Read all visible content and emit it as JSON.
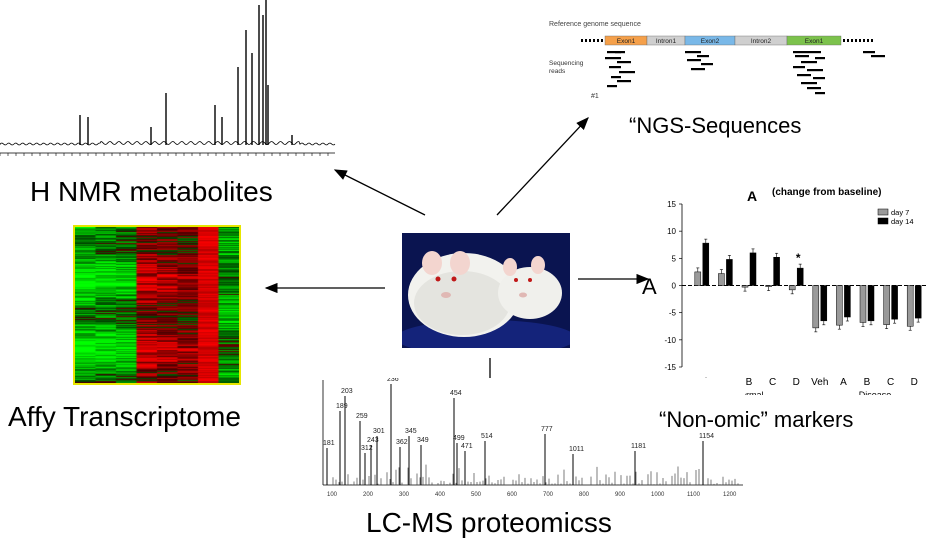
{
  "labels": {
    "nmr": "H NMR metabolites",
    "ngs": "“NGS-Sequences",
    "affy": "Affy Transcriptome",
    "lcms": "LC-MS proteomicss",
    "nonomic": "“Non-omic” markers"
  },
  "ngs_panel": {
    "ref_label": "Reference genome sequence",
    "reads_label_1": "Sequencing",
    "reads_label_2": "reads",
    "small_mark": "#1",
    "segments": [
      "Exon1",
      "Intron1",
      "Exon2",
      "Intron2",
      "Exon1"
    ]
  },
  "ms_peaks": [
    "203",
    "189",
    "236",
    "259",
    "181",
    "301",
    "243",
    "345",
    "312",
    "349",
    "362",
    "454",
    "499",
    "471",
    "514",
    "777",
    "1011",
    "1181",
    "1154"
  ],
  "ms_axis": [
    "100",
    "200",
    "300",
    "400",
    "500",
    "600",
    "700",
    "800",
    "900",
    "1000",
    "1100",
    "1200"
  ],
  "left_marker": "A",
  "chart_data": {
    "type": "bar",
    "title": "A",
    "subtitle": "(change from baseline)",
    "groups": [
      "Normal",
      "Disease"
    ],
    "categories": [
      "Veh",
      "A",
      "B",
      "C",
      "D",
      "Veh",
      "A",
      "B",
      "C",
      "D"
    ],
    "series": [
      {
        "name": "day 7",
        "values": [
          2.5,
          2.2,
          -0.3,
          -0.2,
          -0.8,
          -7.8,
          -7.3,
          -6.8,
          -7.2,
          -7.5
        ]
      },
      {
        "name": "day 14",
        "values": [
          7.8,
          4.8,
          6.0,
          5.2,
          3.2,
          -6.5,
          -5.8,
          -6.5,
          -6.2,
          -6.0
        ]
      }
    ],
    "ylim": [
      -15,
      15
    ],
    "yticks": [
      "15",
      "10",
      "5",
      "0",
      "-5",
      "-10",
      "-15"
    ],
    "annotation": "*",
    "colors": {
      "day 7": "#9a9a9a",
      "day 14": "#000000"
    }
  },
  "colors": {
    "exon1": "#f5a04a",
    "intron": "#cfcfcf",
    "exon2": "#79b8e8",
    "exon1b": "#7cc24c",
    "heat_green": "#00c000",
    "heat_red": "#ff0000",
    "heat_border": "#e6e600",
    "mice_bg": "#0a1450"
  }
}
